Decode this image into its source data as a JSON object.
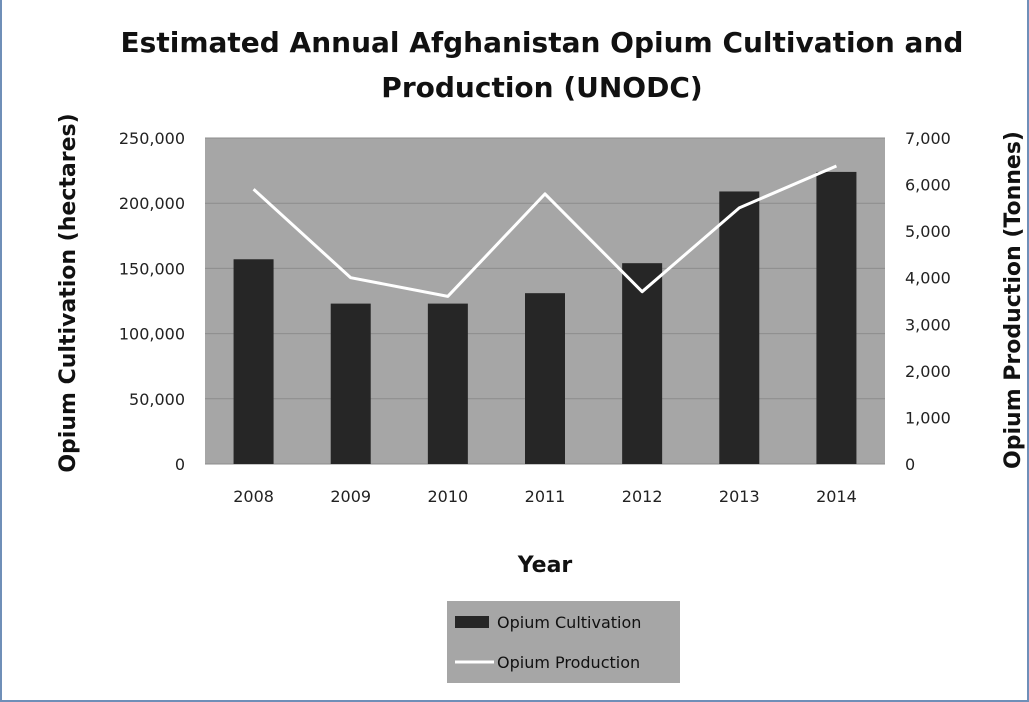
{
  "chart_data": {
    "type": "bar+line",
    "title_lines": [
      "Estimated Annual Afghanistan Opium Cultivation and",
      "Production (UNODC)"
    ],
    "xlabel": "Year",
    "ylabel_left": "Opium Cultivation (hectares)",
    "ylabel_right": "Opium Production (Tonnes)",
    "categories": [
      "2008",
      "2009",
      "2010",
      "2011",
      "2012",
      "2013",
      "2014"
    ],
    "y_left": {
      "lim": [
        0,
        250000
      ],
      "ticks": [
        0,
        50000,
        100000,
        150000,
        200000,
        250000
      ],
      "tick_labels": [
        "0",
        "50,000",
        "100,000",
        "150,000",
        "200,000",
        "250,000"
      ]
    },
    "y_right": {
      "lim": [
        0,
        7000
      ],
      "ticks": [
        0,
        1000,
        2000,
        3000,
        4000,
        5000,
        6000,
        7000
      ],
      "tick_labels": [
        "0",
        "1,000",
        "2,000",
        "3,000",
        "4,000",
        "5,000",
        "6,000",
        "7,000"
      ]
    },
    "series": [
      {
        "name": "Opium Cultivation",
        "kind": "bar",
        "axis": "left",
        "values": [
          157000,
          123000,
          123000,
          131000,
          154000,
          209000,
          224000
        ]
      },
      {
        "name": "Opium Production",
        "kind": "line",
        "axis": "right",
        "values": [
          5900,
          4000,
          3600,
          5800,
          3700,
          5500,
          6400
        ]
      }
    ],
    "grid": true,
    "legend_position": "bottom",
    "colors": {
      "plot_background": "#a6a6a6",
      "bar": "#262626",
      "line": "#ffffff",
      "legend_background": "#a6a6a6",
      "gridline": "#8c8c8c"
    }
  }
}
